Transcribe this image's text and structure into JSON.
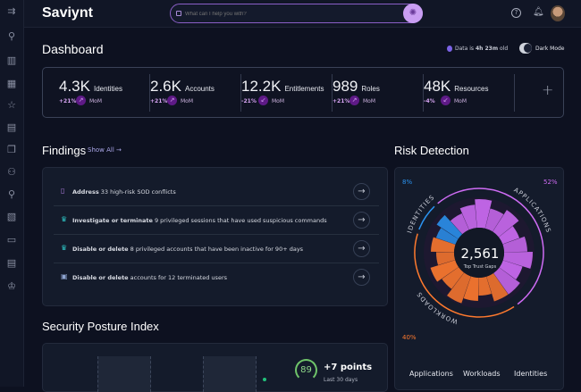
{
  "app": {
    "brand": "Saviynt"
  },
  "search": {
    "placeholder": "What can I help you with?"
  },
  "sidebar": {
    "icons": [
      "expand-menu-icon",
      "search-icon",
      "analytics-icon",
      "dashboard-grid-icon",
      "star-icon",
      "document-icon",
      "copy-icon",
      "identity-icon",
      "location-icon",
      "file-check-icon",
      "shield-icon",
      "report-icon",
      "crown-icon"
    ]
  },
  "dashboard": {
    "title": "Dashboard",
    "data_age_prefix": "Data is ",
    "data_age": "4h 23m",
    "data_age_suffix": " old",
    "dark_mode_label": "Dark Mode",
    "dark_mode_on": true,
    "add_label": "+"
  },
  "stats": [
    {
      "value": "4.3K",
      "label": "Identities",
      "change": "+21%",
      "trend": "up",
      "period": "MoM"
    },
    {
      "value": "2.6K",
      "label": "Accounts",
      "change": "+21%",
      "trend": "up",
      "period": "MoM"
    },
    {
      "value": "12.2K",
      "label": "Entitlements",
      "change": "-21%",
      "trend": "down",
      "period": "MoM"
    },
    {
      "value": "989",
      "label": "Roles",
      "change": "+21%",
      "trend": "up",
      "period": "MoM"
    },
    {
      "value": "48K",
      "label": "Resources",
      "change": "-4%",
      "trend": "down",
      "period": "MoM"
    }
  ],
  "findings": {
    "title": "Findings",
    "show_all": "Show All →",
    "items": [
      {
        "icon": "alert-badge-icon",
        "bold": "Address",
        "text": " 33 high-risk SOD conflicts"
      },
      {
        "icon": "crown-icon",
        "bold": "Investigate or terminate",
        "text": " 9 privileged sessions that have used suspicious commands"
      },
      {
        "icon": "crown-icon",
        "bold": "Disable or delete",
        "text": " 8 privileged accounts that have been inactive for 90+ days"
      },
      {
        "icon": "user-badge-icon",
        "bold": "Disable or delete",
        "text": " accounts for 12 terminated users"
      }
    ]
  },
  "risk": {
    "title": "Risk Detection",
    "total": "2,561",
    "total_label": "Top Trust Gaps",
    "segments": [
      {
        "name": "APPLICATIONS",
        "pct": "52%",
        "value": 52,
        "color": "#cf6cf5"
      },
      {
        "name": "WORKLOADS",
        "pct": "40%",
        "value": 40,
        "color": "#ff7a2e"
      },
      {
        "name": "IDENTITIES",
        "pct": "8%",
        "value": 8,
        "color": "#2b93f0"
      }
    ],
    "legend": [
      "Applications",
      "Workloads",
      "Identities"
    ]
  },
  "posture": {
    "title": "Security Posture Index",
    "score": "89",
    "change": "+7 points",
    "period": "Last 30 days"
  }
}
